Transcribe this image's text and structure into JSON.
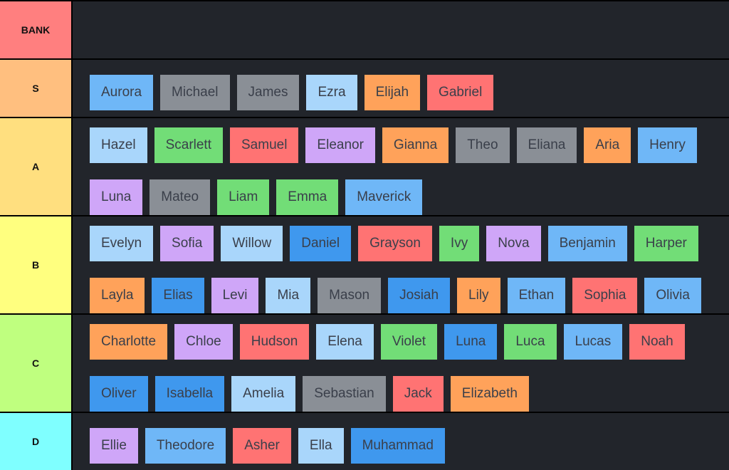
{
  "tiers": [
    {
      "label": "BANK",
      "color": "#ff7f7f",
      "tiles": []
    },
    {
      "label": "S",
      "color": "#ffbf7f",
      "tiles": [
        {
          "name": "Aurora",
          "color": "#6fb7f7"
        },
        {
          "name": "Michael",
          "color": "#8a8f96"
        },
        {
          "name": "James",
          "color": "#8a8f96"
        },
        {
          "name": "Ezra",
          "color": "#a9d6fb"
        },
        {
          "name": "Elijah",
          "color": "#ffa25a"
        },
        {
          "name": "Gabriel",
          "color": "#ff7373"
        }
      ]
    },
    {
      "label": "A",
      "color": "#ffdf7f",
      "tiles": [
        {
          "name": "Hazel",
          "color": "#a9d6fb"
        },
        {
          "name": "Scarlett",
          "color": "#72dd77"
        },
        {
          "name": "Samuel",
          "color": "#ff7373"
        },
        {
          "name": "Eleanor",
          "color": "#cfa6f8"
        },
        {
          "name": "Gianna",
          "color": "#ffa25a"
        },
        {
          "name": "Theo",
          "color": "#8a8f96"
        },
        {
          "name": "Eliana",
          "color": "#8a8f96"
        },
        {
          "name": "Aria",
          "color": "#ffa25a"
        },
        {
          "name": "Henry",
          "color": "#6fb7f7"
        },
        {
          "name": "Luna",
          "color": "#cfa6f8"
        },
        {
          "name": "Mateo",
          "color": "#8a8f96"
        },
        {
          "name": "Liam",
          "color": "#72dd77"
        },
        {
          "name": "Emma",
          "color": "#72dd77"
        },
        {
          "name": "Maverick",
          "color": "#6fb7f7"
        }
      ]
    },
    {
      "label": "B",
      "color": "#ffff7f",
      "tiles": [
        {
          "name": "Evelyn",
          "color": "#a9d6fb"
        },
        {
          "name": "Sofia",
          "color": "#cfa6f8"
        },
        {
          "name": "Willow",
          "color": "#a9d6fb"
        },
        {
          "name": "Daniel",
          "color": "#3f98ee"
        },
        {
          "name": "Grayson",
          "color": "#ff7373"
        },
        {
          "name": "Ivy",
          "color": "#72dd77"
        },
        {
          "name": "Nova",
          "color": "#cfa6f8"
        },
        {
          "name": "Benjamin",
          "color": "#6fb7f7"
        },
        {
          "name": "Harper",
          "color": "#72dd77"
        },
        {
          "name": "Layla",
          "color": "#ffa25a"
        },
        {
          "name": "Elias",
          "color": "#3f98ee"
        },
        {
          "name": "Levi",
          "color": "#cfa6f8"
        },
        {
          "name": "Mia",
          "color": "#a9d6fb"
        },
        {
          "name": "Mason",
          "color": "#8a8f96"
        },
        {
          "name": "Josiah",
          "color": "#3f98ee"
        },
        {
          "name": "Lily",
          "color": "#ffa25a"
        },
        {
          "name": "Ethan",
          "color": "#6fb7f7"
        },
        {
          "name": "Sophia",
          "color": "#ff7373"
        },
        {
          "name": "Olivia",
          "color": "#6fb7f7"
        }
      ]
    },
    {
      "label": "C",
      "color": "#bfff7f",
      "tiles": [
        {
          "name": "Charlotte",
          "color": "#ffa25a"
        },
        {
          "name": "Chloe",
          "color": "#cfa6f8"
        },
        {
          "name": "Hudson",
          "color": "#ff7373"
        },
        {
          "name": "Elena",
          "color": "#a9d6fb"
        },
        {
          "name": "Violet",
          "color": "#72dd77"
        },
        {
          "name": "Luna",
          "color": "#3f98ee"
        },
        {
          "name": "Luca",
          "color": "#72dd77"
        },
        {
          "name": "Lucas",
          "color": "#6fb7f7"
        },
        {
          "name": "Noah",
          "color": "#ff7373"
        },
        {
          "name": "Oliver",
          "color": "#3f98ee"
        },
        {
          "name": "Isabella",
          "color": "#3f98ee"
        },
        {
          "name": "Amelia",
          "color": "#a9d6fb"
        },
        {
          "name": "Sebastian",
          "color": "#8a8f96"
        },
        {
          "name": "Jack",
          "color": "#ff7373"
        },
        {
          "name": "Elizabeth",
          "color": "#ffa25a"
        }
      ]
    },
    {
      "label": "D",
      "color": "#7fffff",
      "tiles": [
        {
          "name": "Ellie",
          "color": "#cfa6f8"
        },
        {
          "name": "Theodore",
          "color": "#6fb7f7"
        },
        {
          "name": "Asher",
          "color": "#ff7373"
        },
        {
          "name": "Ella",
          "color": "#a9d6fb"
        },
        {
          "name": "Muhammad",
          "color": "#3f98ee"
        }
      ]
    }
  ]
}
